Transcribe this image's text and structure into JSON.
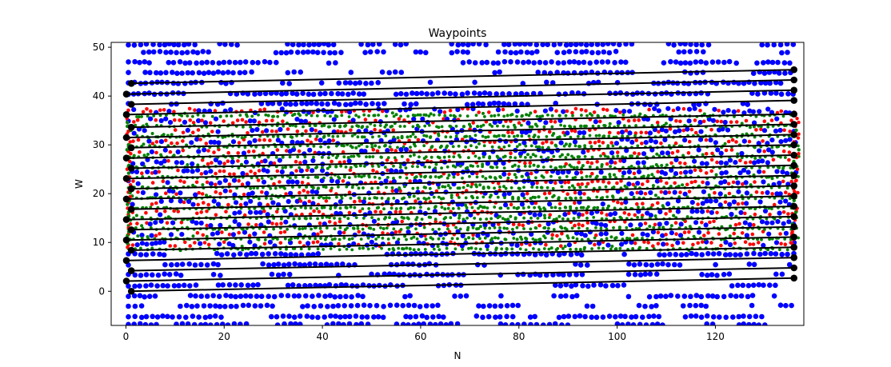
{
  "chart_data": {
    "type": "scatter",
    "title": "Waypoints",
    "xlabel": "N",
    "ylabel": "W",
    "xlim": [
      -3,
      138
    ],
    "ylim": [
      -7,
      51
    ],
    "xticks": [
      0,
      20,
      40,
      60,
      80,
      100,
      120
    ],
    "yticks": [
      0,
      10,
      20,
      30,
      40,
      50
    ],
    "grid": false,
    "colors": {
      "blue": "#0000ff",
      "red": "#ff0000",
      "green": "#008000",
      "black": "#000000"
    },
    "waypoint_lines": [
      {
        "y0": 0.0,
        "y1": 2.7
      },
      {
        "y0": 2.1,
        "y1": 4.8
      },
      {
        "y0": 4.2,
        "y1": 6.9
      },
      {
        "y0": 6.3,
        "y1": 9.0
      },
      {
        "y0": 8.4,
        "y1": 11.1
      },
      {
        "y0": 10.5,
        "y1": 13.2
      },
      {
        "y0": 12.6,
        "y1": 15.3
      },
      {
        "y0": 14.7,
        "y1": 17.4
      },
      {
        "y0": 16.8,
        "y1": 19.5
      },
      {
        "y0": 18.9,
        "y1": 21.6
      },
      {
        "y0": 21.0,
        "y1": 23.7
      },
      {
        "y0": 23.1,
        "y1": 25.8
      },
      {
        "y0": 25.2,
        "y1": 27.9
      },
      {
        "y0": 27.3,
        "y1": 30.0
      },
      {
        "y0": 29.4,
        "y1": 32.1
      },
      {
        "y0": 31.5,
        "y1": 34.2
      },
      {
        "y0": 33.6,
        "y1": 36.3
      },
      {
        "y0": 36.2,
        "y1": 39.1
      },
      {
        "y0": 38.3,
        "y1": 41.2
      },
      {
        "y0": 40.4,
        "y1": 43.3
      },
      {
        "y0": 42.6,
        "y1": 45.4
      }
    ],
    "line_x": [
      0.5,
      136
    ],
    "blue_outer_rows": [
      -6.8,
      -5.2,
      -3.0,
      -1.0,
      1.2,
      3.4,
      5.5,
      7.6,
      38.4,
      40.5,
      42.7,
      44.8,
      46.9,
      49.0,
      50.6
    ],
    "inner_rows": [
      9.7,
      11.8,
      13.9,
      16.0,
      18.1,
      20.2,
      22.3,
      24.4,
      26.5,
      28.6,
      30.7,
      32.8,
      34.9,
      37.0
    ]
  }
}
